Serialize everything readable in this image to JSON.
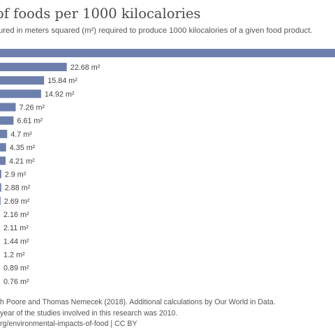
{
  "header": {
    "title": "of foods per 1000 kilocalories",
    "subtitle": "ured in meters squared (m²) required to produce 1000 kilocalories of a given food product."
  },
  "chart_data": {
    "type": "bar",
    "orientation": "horizontal",
    "unit": "m²",
    "bar_color": "#6d7fad",
    "values": [
      22.68,
      15.84,
      14.92,
      7.26,
      6.61,
      4.7,
      4.35,
      4.21,
      2.9,
      2.88,
      2.69,
      2.16,
      2.11,
      1.44,
      1.2,
      0.89,
      0.76
    ],
    "labels": [
      "22.68 m²",
      "15.84 m²",
      "14.92 m²",
      "7.26 m²",
      "6.61 m²",
      "4.7 m²",
      "4.35 m²",
      "4.21 m²",
      "2.9 m²",
      "2.88 m²",
      "2.69 m²",
      "2.16 m²",
      "2.11 m²",
      "1.44 m²",
      "1.2 m²",
      "0.89 m²",
      "0.76 m²"
    ]
  },
  "footer": {
    "line1": "h Poore and Thomas Nemecek (2018). Additional calculations by Our World in Data.",
    "line2": "year of the studies involved in this research was 2010.",
    "line3": "rg/environmental-impacts-of-food | CC BY"
  }
}
